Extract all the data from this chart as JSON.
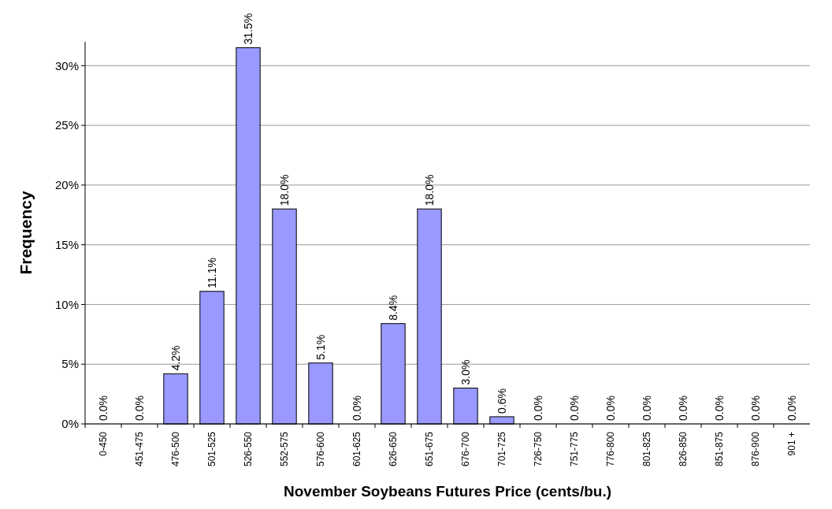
{
  "chart_data": {
    "type": "bar",
    "xlabel": "November Soybeans Futures Price (cents/bu.)",
    "ylabel": "Frequency",
    "categories": [
      "0-450",
      "451-475",
      "476-500",
      "501-525",
      "526-550",
      "552-575",
      "576-600",
      "601-625",
      "626-650",
      "651-675",
      "676-700",
      "701-725",
      "726-750",
      "751-775",
      "776-800",
      "801-825",
      "826-850",
      "851-875",
      "876-900",
      "901 +"
    ],
    "values": [
      0,
      0,
      4.2,
      11.1,
      31.5,
      18.0,
      5.1,
      0,
      8.4,
      18.0,
      3.0,
      0.6,
      0,
      0,
      0,
      0,
      0,
      0,
      0,
      0
    ],
    "value_labels": [
      "0.0%",
      "0.0%",
      "4.2%",
      "11.1%",
      "31.5%",
      "18.0%",
      "5.1%",
      "0.0%",
      "8.4%",
      "18.0%",
      "3.0%",
      "0.6%",
      "0.0%",
      "0.0%",
      "0.0%",
      "0.0%",
      "0.0%",
      "0.0%",
      "0.0%",
      "0.0%"
    ],
    "color": "#9999ff",
    "ylim": [
      0,
      32
    ],
    "yticks": [
      {
        "value": 0,
        "label": "0%"
      },
      {
        "value": 5,
        "label": "5%"
      },
      {
        "value": 10,
        "label": "10%"
      },
      {
        "value": 15,
        "label": "15%"
      },
      {
        "value": 20,
        "label": "20%"
      },
      {
        "value": 25,
        "label": "25%"
      },
      {
        "value": 30,
        "label": "30%"
      }
    ],
    "grid": "y"
  }
}
